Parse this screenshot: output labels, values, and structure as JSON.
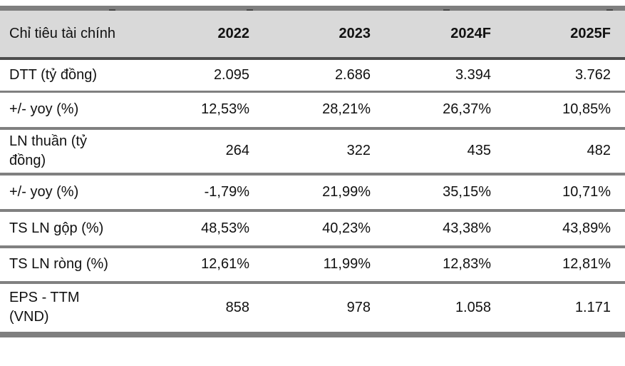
{
  "table": {
    "header": {
      "label": "Chỉ tiêu tài chính",
      "years": [
        "2022",
        "2023",
        "2024F",
        "2025F"
      ]
    },
    "rows": [
      {
        "label": "DTT (tỷ đồng)",
        "values": [
          "2.095",
          "2.686",
          "3.394",
          "3.762"
        ]
      },
      {
        "label": "+/- yoy (%)",
        "values": [
          "12,53%",
          "28,21%",
          "26,37%",
          "10,85%"
        ]
      },
      {
        "label": "LN thuần (tỷ đồng)",
        "values": [
          "264",
          "322",
          "435",
          "482"
        ]
      },
      {
        "label": "+/- yoy (%)",
        "values": [
          "-1,79%",
          "21,99%",
          "35,15%",
          "10,71%"
        ]
      },
      {
        "label": "TS LN gộp (%)",
        "values": [
          "48,53%",
          "40,23%",
          "43,38%",
          "43,89%"
        ]
      },
      {
        "label": "TS LN ròng (%)",
        "values": [
          "12,61%",
          "11,99%",
          "12,83%",
          "12,81%"
        ]
      },
      {
        "label": "EPS - TTM (VND)",
        "values": [
          "858",
          "978",
          "1.058",
          "1.171"
        ]
      }
    ],
    "colors": {
      "header_bg": "#d9d9d9",
      "outer_border": "#7f7f7f",
      "header_rule": "#4d4d4d",
      "row_rule": "#808080",
      "text": "#111111"
    }
  },
  "chart_data": {
    "type": "table",
    "title": "Chỉ tiêu tài chính",
    "columns": [
      "Chỉ tiêu tài chính",
      "2022",
      "2023",
      "2024F",
      "2025F"
    ],
    "rows": [
      [
        "DTT (tỷ đồng)",
        "2.095",
        "2.686",
        "3.394",
        "3.762"
      ],
      [
        "+/- yoy (%)",
        "12,53%",
        "28,21%",
        "26,37%",
        "10,85%"
      ],
      [
        "LN thuần (tỷ đồng)",
        "264",
        "322",
        "435",
        "482"
      ],
      [
        "+/- yoy (%)",
        "-1,79%",
        "21,99%",
        "35,15%",
        "10,71%"
      ],
      [
        "TS LN gộp (%)",
        "48,53%",
        "40,23%",
        "43,38%",
        "43,89%"
      ],
      [
        "TS LN ròng (%)",
        "12,61%",
        "11,99%",
        "12,83%",
        "12,81%"
      ],
      [
        "EPS - TTM (VND)",
        "858",
        "978",
        "1.058",
        "1.171"
      ]
    ]
  }
}
